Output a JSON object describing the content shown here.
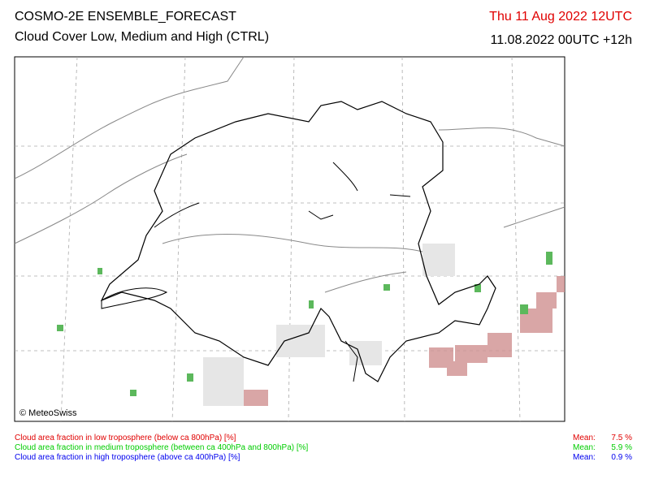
{
  "header": {
    "title": "COSMO-2E ENSEMBLE_FORECAST",
    "subtitle": "Cloud Cover Low, Medium and High (CTRL)",
    "valid_time": "Thu 11 Aug 2022 12UTC",
    "run_time": "11.08.2022 00UTC +12h"
  },
  "map": {
    "copyright": "© MeteoSwiss"
  },
  "legend": {
    "rows": [
      {
        "label": "Cloud area fraction in low troposphere (below ca 800hPa) [%]",
        "mean_label": "Mean:",
        "mean": "7.5 %",
        "color": "#e00000"
      },
      {
        "label": "Cloud area fraction in medium troposphere (between ca 400hPa and 800hPa) [%]",
        "mean_label": "Mean:",
        "mean": "5.9 %",
        "color": "#00cc00"
      },
      {
        "label": "Cloud area fraction in high troposphere (above ca 400hPa) [%]",
        "mean_label": "Mean:",
        "mean": "0.9 %",
        "color": "#0000ee"
      }
    ]
  }
}
